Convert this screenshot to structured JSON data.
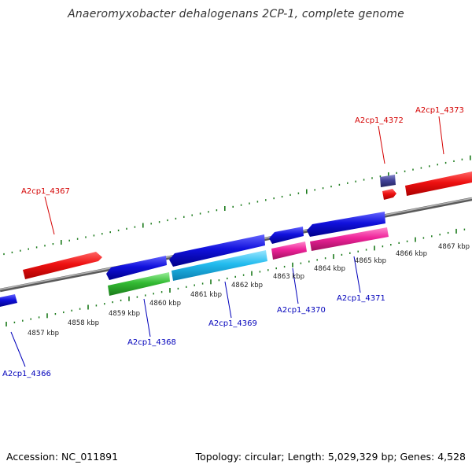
{
  "title": "Anaeromyxobacter dehalogenans 2CP-1, complete genome",
  "footer": {
    "accession": "Accession: NC_011891",
    "summary": "Topology: circular; Length: 5,029,329 bp; Genes: 4,528"
  },
  "kbp_ticks": [
    "4857 kbp",
    "4858 kbp",
    "4859 kbp",
    "4860 kbp",
    "4861 kbp",
    "4862 kbp",
    "4863 kbp",
    "4864 kbp",
    "4865 kbp",
    "4866 kbp",
    "4867 kbp"
  ],
  "gene_labels": {
    "top": [
      "A2cp1_4367",
      "A2cp1_4372",
      "A2cp1_4373"
    ],
    "bottom": [
      "A2cp1_4366",
      "A2cp1_4368",
      "A2cp1_4369",
      "A2cp1_4370",
      "A2cp1_4371"
    ]
  },
  "colors": {
    "label_top": "#d40000",
    "label_bottom": "#0000bb",
    "tick": "#1a7a1a",
    "backbone": "#888888",
    "red_gene": "#ee1111",
    "blue_gene": "#1111dd",
    "green_gene": "#33bb33",
    "cyan_gene": "#22bbee",
    "magenta_gene": "#ee2299",
    "purple_gene": "#444499"
  }
}
